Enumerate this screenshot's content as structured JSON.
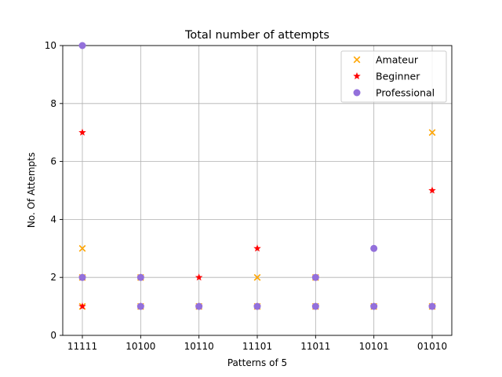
{
  "chart_data": {
    "type": "scatter",
    "title": "Total number of attempts",
    "xlabel": "Patterns of 5",
    "ylabel": "No. Of Attempts",
    "categories": [
      "11111",
      "10100",
      "10110",
      "11101",
      "11011",
      "10101",
      "01010"
    ],
    "ylim": [
      0,
      10
    ],
    "yticks": [
      0,
      2,
      4,
      6,
      8,
      10
    ],
    "grid": true,
    "legend_position": "top-right",
    "series": [
      {
        "name": "Amateur",
        "marker": "x",
        "color": "#ffa500",
        "points": [
          {
            "x": "11111",
            "y": 1
          },
          {
            "x": "11111",
            "y": 2
          },
          {
            "x": "11111",
            "y": 3
          },
          {
            "x": "10100",
            "y": 1
          },
          {
            "x": "10100",
            "y": 2
          },
          {
            "x": "10110",
            "y": 1
          },
          {
            "x": "11101",
            "y": 1
          },
          {
            "x": "11101",
            "y": 2
          },
          {
            "x": "11011",
            "y": 1
          },
          {
            "x": "11011",
            "y": 2
          },
          {
            "x": "10101",
            "y": 1
          },
          {
            "x": "01010",
            "y": 1
          },
          {
            "x": "01010",
            "y": 7
          }
        ]
      },
      {
        "name": "Beginner",
        "marker": "star",
        "color": "#ff0000",
        "points": [
          {
            "x": "11111",
            "y": 1
          },
          {
            "x": "11111",
            "y": 2
          },
          {
            "x": "11111",
            "y": 7
          },
          {
            "x": "10100",
            "y": 1
          },
          {
            "x": "10100",
            "y": 2
          },
          {
            "x": "10110",
            "y": 1
          },
          {
            "x": "10110",
            "y": 2
          },
          {
            "x": "11101",
            "y": 1
          },
          {
            "x": "11101",
            "y": 3
          },
          {
            "x": "11011",
            "y": 1
          },
          {
            "x": "11011",
            "y": 2
          },
          {
            "x": "10101",
            "y": 1
          },
          {
            "x": "01010",
            "y": 1
          },
          {
            "x": "01010",
            "y": 5
          }
        ]
      },
      {
        "name": "Professional",
        "marker": "circle",
        "color": "#9370db",
        "points": [
          {
            "x": "11111",
            "y": 2
          },
          {
            "x": "11111",
            "y": 10
          },
          {
            "x": "10100",
            "y": 1
          },
          {
            "x": "10100",
            "y": 2
          },
          {
            "x": "10110",
            "y": 1
          },
          {
            "x": "11101",
            "y": 1
          },
          {
            "x": "11011",
            "y": 1
          },
          {
            "x": "11011",
            "y": 2
          },
          {
            "x": "10101",
            "y": 1
          },
          {
            "x": "10101",
            "y": 3
          },
          {
            "x": "01010",
            "y": 1
          }
        ]
      }
    ]
  }
}
